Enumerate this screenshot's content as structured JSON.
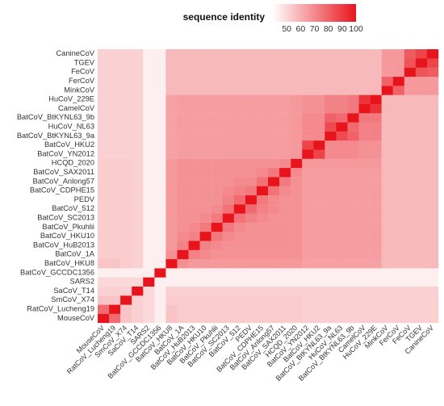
{
  "chart_data": {
    "type": "heatmap",
    "legend": {
      "title": "sequence identity",
      "ticks": [
        50,
        60,
        70,
        80,
        90,
        100
      ],
      "placement": "top",
      "colors": {
        "low": "#ffffff",
        "high": "#e8141c"
      },
      "range": [
        40,
        100
      ]
    },
    "labels": [
      "MouseCoV",
      "RatCoV_Lucheng19",
      "SmCoV_X74",
      "SaCoV_T14",
      "SARS2",
      "BatCoV_GCCDC1356",
      "BatCoV_HKU8",
      "BatCoV_1A",
      "BatCoV_HuB2013",
      "BatCoV_HKU10",
      "BatCoV_Pkuhlii",
      "BatCoV_SC2013",
      "BatCoV_512",
      "PEDV",
      "BatCoV_CDPHE15",
      "BatCoV_Anlong57",
      "BatCoV_SAX2011",
      "HCQD_2020",
      "BatCoV_YN2012",
      "BatCoV_HKU2",
      "BatCoV_BtKYNL63_9a",
      "HuCoV_NL63",
      "BatCoV_BtKYNL63_9b",
      "CamelCoV",
      "HuCoV_229E",
      "MinkCoV",
      "FerCoV",
      "FeCoV",
      "TGEV",
      "CanineCoV"
    ],
    "x_axis_labels": [
      "MouseCoV",
      "RatCoV_Lucheng19",
      "SmCoV_X74",
      "SaCoV_T14",
      "SARS2",
      "BatCoV_GCCDC1356",
      "BatCoV_HKU8",
      "BatCoV_1A",
      "BatCoV_HuB2013",
      "BatCoV_HKU10",
      "BatCoV_Pkuhlii",
      "BatCoV_SC2013",
      "BatCoV_512",
      "PEDV",
      "BatCoV_CDPHE15",
      "BatCoV_Anlong57",
      "BatCoV_SAX2011",
      "HCQD_2020",
      "BatCoV_YN2012",
      "BatCoV_HKU2",
      "BatCoV_BtKYNL63_9a",
      "HuCoV_NL63",
      "BatCoV_BtKYNL63_9b",
      "CamelCoV",
      "HuCoV_229E",
      "MinkCoV",
      "FerCoV",
      "FeCoV",
      "TGEV",
      "CanineCoV"
    ],
    "values": [
      [
        100,
        78,
        55,
        52,
        50,
        44,
        55,
        53,
        53,
        53,
        53,
        53,
        53,
        53,
        53,
        53,
        53,
        53,
        52,
        52,
        52,
        52,
        52,
        52,
        52,
        52,
        52,
        52,
        52,
        52
      ],
      [
        78,
        100,
        55,
        52,
        50,
        44,
        55,
        53,
        53,
        53,
        53,
        53,
        53,
        53,
        53,
        53,
        53,
        53,
        52,
        52,
        52,
        52,
        52,
        52,
        52,
        52,
        52,
        52,
        52,
        52
      ],
      [
        55,
        55,
        100,
        52,
        50,
        44,
        53,
        53,
        53,
        53,
        53,
        53,
        53,
        53,
        53,
        53,
        53,
        53,
        52,
        52,
        52,
        52,
        52,
        52,
        52,
        52,
        52,
        52,
        52,
        52
      ],
      [
        52,
        52,
        52,
        100,
        50,
        44,
        52,
        52,
        52,
        52,
        52,
        52,
        52,
        52,
        52,
        52,
        52,
        52,
        52,
        52,
        52,
        52,
        52,
        52,
        52,
        52,
        52,
        52,
        52,
        52
      ],
      [
        50,
        50,
        50,
        50,
        100,
        44,
        44,
        44,
        44,
        44,
        44,
        44,
        44,
        44,
        44,
        44,
        44,
        44,
        44,
        44,
        44,
        44,
        44,
        44,
        44,
        44,
        44,
        44,
        44,
        44
      ],
      [
        44,
        44,
        44,
        44,
        44,
        100,
        44,
        44,
        44,
        44,
        44,
        44,
        44,
        44,
        44,
        44,
        44,
        44,
        44,
        44,
        44,
        44,
        44,
        44,
        44,
        44,
        44,
        44,
        44,
        44
      ],
      [
        55,
        55,
        53,
        52,
        44,
        44,
        100,
        68,
        66,
        66,
        66,
        66,
        66,
        66,
        66,
        66,
        66,
        66,
        64,
        64,
        64,
        64,
        64,
        64,
        64,
        58,
        58,
        58,
        58,
        58
      ],
      [
        53,
        53,
        53,
        52,
        44,
        44,
        68,
        100,
        72,
        70,
        68,
        68,
        68,
        68,
        68,
        68,
        68,
        68,
        65,
        65,
        65,
        65,
        65,
        65,
        65,
        58,
        58,
        58,
        58,
        58
      ],
      [
        53,
        53,
        53,
        52,
        44,
        44,
        66,
        72,
        100,
        72,
        70,
        68,
        68,
        68,
        68,
        68,
        68,
        68,
        65,
        65,
        65,
        65,
        65,
        65,
        65,
        58,
        58,
        58,
        58,
        58
      ],
      [
        53,
        53,
        53,
        52,
        44,
        44,
        66,
        70,
        72,
        100,
        74,
        70,
        68,
        68,
        68,
        68,
        68,
        68,
        65,
        65,
        65,
        65,
        65,
        65,
        65,
        58,
        58,
        58,
        58,
        58
      ],
      [
        53,
        53,
        53,
        52,
        44,
        44,
        66,
        68,
        70,
        74,
        100,
        74,
        70,
        68,
        68,
        68,
        68,
        68,
        65,
        65,
        65,
        65,
        65,
        65,
        65,
        58,
        58,
        58,
        58,
        58
      ],
      [
        53,
        53,
        53,
        52,
        44,
        44,
        66,
        68,
        68,
        70,
        74,
        100,
        76,
        72,
        70,
        68,
        68,
        68,
        65,
        65,
        65,
        65,
        65,
        65,
        65,
        58,
        58,
        58,
        58,
        58
      ],
      [
        53,
        53,
        53,
        52,
        44,
        44,
        66,
        68,
        68,
        68,
        70,
        76,
        100,
        78,
        72,
        70,
        68,
        68,
        65,
        65,
        65,
        65,
        65,
        65,
        65,
        58,
        58,
        58,
        58,
        58
      ],
      [
        53,
        53,
        53,
        52,
        44,
        44,
        66,
        68,
        68,
        68,
        68,
        72,
        78,
        100,
        74,
        70,
        68,
        68,
        65,
        65,
        65,
        65,
        65,
        65,
        65,
        58,
        58,
        58,
        58,
        58
      ],
      [
        53,
        53,
        53,
        52,
        44,
        44,
        66,
        68,
        68,
        68,
        68,
        70,
        72,
        74,
        100,
        76,
        70,
        68,
        65,
        65,
        65,
        65,
        65,
        65,
        65,
        58,
        58,
        58,
        58,
        58
      ],
      [
        53,
        53,
        53,
        52,
        44,
        44,
        66,
        68,
        68,
        68,
        68,
        68,
        70,
        70,
        76,
        100,
        74,
        68,
        65,
        65,
        65,
        65,
        65,
        65,
        65,
        58,
        58,
        58,
        58,
        58
      ],
      [
        53,
        53,
        53,
        52,
        44,
        44,
        66,
        68,
        68,
        68,
        68,
        68,
        68,
        68,
        70,
        74,
        100,
        70,
        65,
        65,
        65,
        65,
        65,
        65,
        65,
        58,
        58,
        58,
        58,
        58
      ],
      [
        53,
        53,
        53,
        52,
        44,
        44,
        66,
        68,
        68,
        68,
        68,
        68,
        68,
        68,
        68,
        68,
        70,
        100,
        66,
        66,
        66,
        66,
        66,
        66,
        66,
        58,
        58,
        58,
        58,
        58
      ],
      [
        52,
        52,
        52,
        52,
        44,
        44,
        64,
        65,
        65,
        65,
        65,
        65,
        65,
        65,
        65,
        65,
        65,
        66,
        100,
        88,
        70,
        70,
        70,
        68,
        68,
        58,
        58,
        58,
        58,
        58
      ],
      [
        52,
        52,
        52,
        52,
        44,
        44,
        64,
        65,
        65,
        65,
        65,
        65,
        65,
        65,
        65,
        65,
        65,
        66,
        88,
        100,
        70,
        70,
        70,
        68,
        68,
        58,
        58,
        58,
        58,
        58
      ],
      [
        52,
        52,
        52,
        52,
        44,
        44,
        64,
        65,
        65,
        65,
        65,
        65,
        65,
        65,
        65,
        65,
        65,
        66,
        70,
        70,
        100,
        86,
        80,
        72,
        72,
        58,
        58,
        58,
        58,
        58
      ],
      [
        52,
        52,
        52,
        52,
        44,
        44,
        64,
        65,
        65,
        65,
        65,
        65,
        65,
        65,
        65,
        65,
        65,
        66,
        70,
        70,
        86,
        100,
        78,
        72,
        72,
        58,
        58,
        58,
        58,
        58
      ],
      [
        52,
        52,
        52,
        52,
        44,
        44,
        64,
        65,
        65,
        65,
        65,
        65,
        65,
        65,
        65,
        65,
        65,
        66,
        70,
        70,
        80,
        78,
        100,
        74,
        74,
        58,
        58,
        58,
        58,
        58
      ],
      [
        52,
        52,
        52,
        52,
        44,
        44,
        64,
        65,
        65,
        65,
        65,
        65,
        65,
        65,
        65,
        65,
        65,
        66,
        68,
        68,
        72,
        72,
        74,
        100,
        92,
        58,
        58,
        58,
        58,
        58
      ],
      [
        52,
        52,
        52,
        52,
        44,
        44,
        64,
        65,
        65,
        65,
        65,
        65,
        65,
        65,
        65,
        65,
        65,
        66,
        68,
        68,
        72,
        72,
        74,
        92,
        100,
        58,
        58,
        58,
        58,
        58
      ],
      [
        52,
        52,
        52,
        52,
        44,
        44,
        58,
        58,
        58,
        58,
        58,
        58,
        58,
        58,
        58,
        58,
        58,
        58,
        58,
        58,
        58,
        58,
        58,
        58,
        58,
        100,
        80,
        66,
        66,
        66
      ],
      [
        52,
        52,
        52,
        52,
        44,
        44,
        58,
        58,
        58,
        58,
        58,
        58,
        58,
        58,
        58,
        58,
        58,
        58,
        58,
        58,
        58,
        58,
        58,
        58,
        58,
        80,
        100,
        66,
        66,
        66
      ],
      [
        52,
        52,
        52,
        52,
        44,
        44,
        58,
        58,
        58,
        58,
        58,
        58,
        58,
        58,
        58,
        58,
        58,
        58,
        58,
        58,
        58,
        58,
        58,
        58,
        58,
        66,
        66,
        100,
        84,
        82
      ],
      [
        52,
        52,
        52,
        52,
        44,
        44,
        58,
        58,
        58,
        58,
        58,
        58,
        58,
        58,
        58,
        58,
        58,
        58,
        58,
        58,
        58,
        58,
        58,
        58,
        58,
        66,
        66,
        84,
        100,
        88
      ],
      [
        52,
        52,
        52,
        52,
        44,
        44,
        58,
        58,
        58,
        58,
        58,
        58,
        58,
        58,
        58,
        58,
        58,
        58,
        58,
        58,
        58,
        58,
        58,
        58,
        58,
        66,
        66,
        82,
        88,
        100
      ]
    ]
  }
}
